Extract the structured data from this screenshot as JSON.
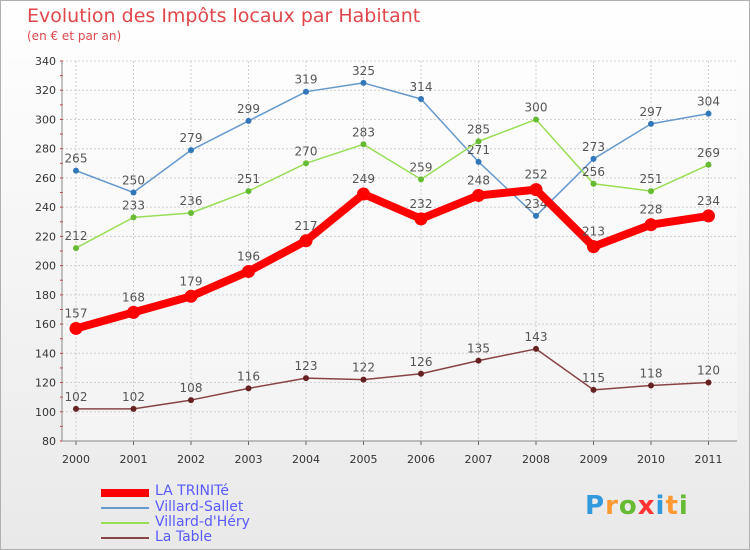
{
  "chart_data": {
    "type": "line",
    "title": "Evolution des Impôts locaux par Habitant",
    "subtitle": "(en € et par an)",
    "xlabel": "",
    "ylabel": "",
    "categories": [
      "2000",
      "2001",
      "2002",
      "2003",
      "2004",
      "2005",
      "2006",
      "2007",
      "2008",
      "2009",
      "2010",
      "2011"
    ],
    "ylim": [
      80,
      340
    ],
    "yticks": [
      80,
      100,
      120,
      140,
      160,
      180,
      200,
      220,
      240,
      260,
      280,
      300,
      320,
      340
    ],
    "grid": true,
    "legend_position": "bottom-left",
    "series": [
      {
        "name": "LA TRINITé",
        "color": "#ff0000",
        "values": [
          157,
          168,
          179,
          196,
          217,
          249,
          232,
          248,
          252,
          213,
          228,
          234
        ]
      },
      {
        "name": "Villard-Sallet",
        "color": "#6699cc",
        "values": [
          265,
          250,
          279,
          299,
          319,
          325,
          314,
          271,
          234,
          273,
          297,
          304
        ]
      },
      {
        "name": "Villard-d'Héry",
        "color": "#99dd55",
        "values": [
          212,
          233,
          236,
          251,
          270,
          283,
          259,
          285,
          300,
          256,
          251,
          269
        ]
      },
      {
        "name": "La Table",
        "color": "#884444",
        "values": [
          102,
          102,
          108,
          116,
          123,
          122,
          126,
          135,
          143,
          115,
          118,
          120
        ]
      }
    ]
  },
  "logo": {
    "letters": [
      "P",
      "r",
      "o",
      "x",
      "i",
      "t",
      "i"
    ],
    "colors": [
      "#3399dd",
      "#ff9933",
      "#66bb33",
      "#ff3333",
      "#3399dd",
      "#ff9933",
      "#66bb33"
    ]
  }
}
